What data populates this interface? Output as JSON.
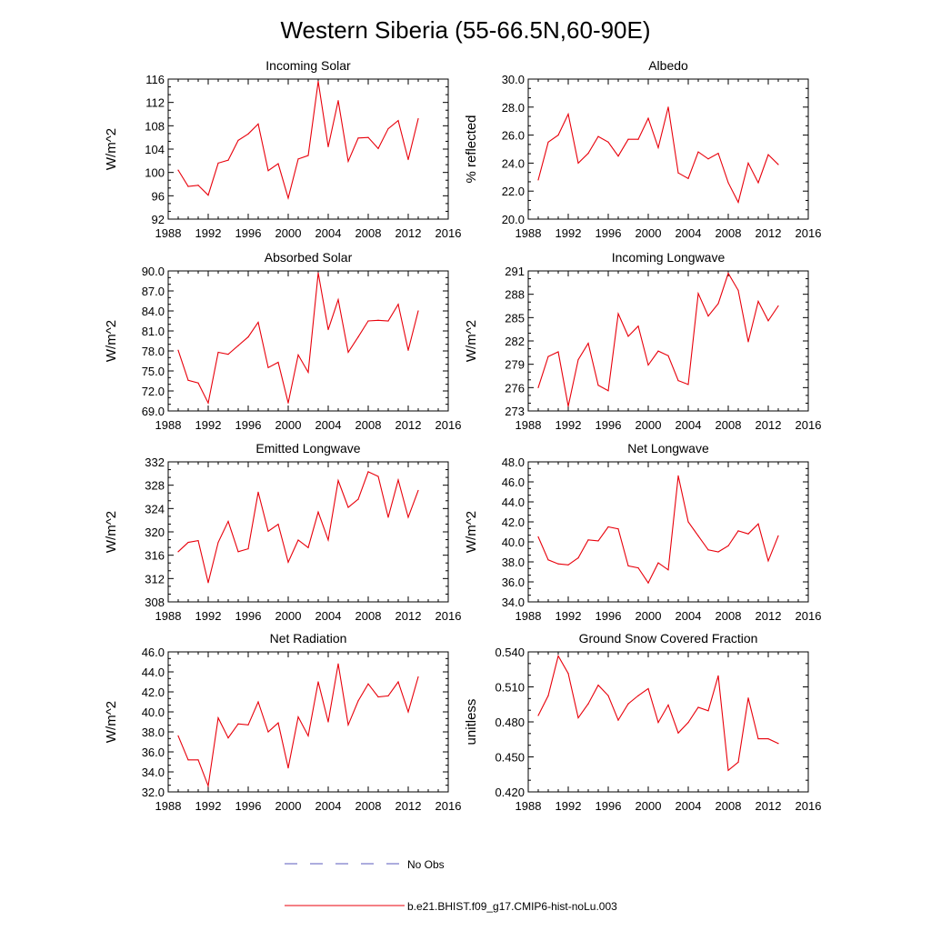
{
  "figure": {
    "title": "Western Siberia (55-66.5N,60-90E)",
    "line_color": "#e8000b",
    "obs_color": "#5b5bbd"
  },
  "legend": {
    "obs_label": "No Obs",
    "model_label": "b.e21.BHIST.f09_g17.CMIP6-hist-noLu.003"
  },
  "chart_data": [
    {
      "type": "line",
      "title": "Incoming Solar",
      "ylabel": "W/m^2",
      "xlim": [
        1988,
        2016
      ],
      "ylim": [
        92,
        116
      ],
      "xticks": [
        1988,
        1992,
        1996,
        2000,
        2004,
        2008,
        2012,
        2016
      ],
      "yticks": [
        92,
        96,
        100,
        104,
        108,
        112,
        116
      ],
      "ytick_labels": [
        "92",
        "96",
        "100",
        "104",
        "108",
        "112",
        "116"
      ],
      "x": [
        1989,
        1990,
        1991,
        1992,
        1993,
        1994,
        1995,
        1996,
        1997,
        1998,
        1999,
        2000,
        2001,
        2002,
        2003,
        2004,
        2005,
        2006,
        2007,
        2008,
        2009,
        2010,
        2011,
        2012,
        2013
      ],
      "series": [
        {
          "values": [
            100.4,
            97.6,
            97.8,
            96.1,
            101.6,
            102.1,
            105.5,
            106.6,
            108.3,
            100.3,
            101.5,
            95.6,
            102.3,
            102.9,
            115.6,
            104.4,
            112.3,
            101.9,
            105.9,
            106.0,
            104.1,
            107.5,
            108.9,
            102.2,
            109.2
          ]
        }
      ]
    },
    {
      "type": "line",
      "title": "Albedo",
      "ylabel": "% reflected",
      "xlim": [
        1988,
        2016
      ],
      "ylim": [
        20,
        30
      ],
      "xticks": [
        1988,
        1992,
        1996,
        2000,
        2004,
        2008,
        2012,
        2016
      ],
      "yticks": [
        20,
        22,
        24,
        26,
        28,
        30
      ],
      "ytick_labels": [
        "20.0",
        "22.0",
        "24.0",
        "26.0",
        "28.0",
        "30.0"
      ],
      "x": [
        1989,
        1990,
        1991,
        1992,
        1993,
        1994,
        1995,
        1996,
        1997,
        1998,
        1999,
        2000,
        2001,
        2002,
        2003,
        2004,
        2005,
        2006,
        2007,
        2008,
        2009,
        2010,
        2011,
        2012,
        2013
      ],
      "series": [
        {
          "values": [
            22.8,
            25.5,
            26.0,
            27.5,
            24.0,
            24.7,
            25.9,
            25.5,
            24.5,
            25.7,
            25.7,
            27.2,
            25.1,
            28.0,
            23.3,
            22.9,
            24.8,
            24.3,
            24.7,
            22.6,
            21.2,
            24.0,
            22.6,
            24.6,
            23.9
          ]
        }
      ]
    },
    {
      "type": "line",
      "title": "Absorbed Solar",
      "ylabel": "W/m^2",
      "xlim": [
        1988,
        2016
      ],
      "ylim": [
        69,
        90
      ],
      "xticks": [
        1988,
        1992,
        1996,
        2000,
        2004,
        2008,
        2012,
        2016
      ],
      "yticks": [
        69,
        72,
        75,
        78,
        81,
        84,
        87,
        90
      ],
      "ytick_labels": [
        "69.0",
        "72.0",
        "75.0",
        "78.0",
        "81.0",
        "84.0",
        "87.0",
        "90.0"
      ],
      "x": [
        1989,
        1990,
        1991,
        1992,
        1993,
        1994,
        1995,
        1996,
        1997,
        1998,
        1999,
        2000,
        2001,
        2002,
        2003,
        2004,
        2005,
        2006,
        2007,
        2008,
        2009,
        2010,
        2011,
        2012,
        2013
      ],
      "series": [
        {
          "values": [
            78.1,
            73.6,
            73.2,
            70.2,
            77.8,
            77.5,
            78.8,
            80.1,
            82.3,
            75.5,
            76.3,
            70.2,
            77.4,
            74.8,
            89.7,
            81.2,
            85.7,
            77.8,
            80.1,
            82.5,
            82.6,
            82.5,
            85.0,
            78.1,
            84.0
          ]
        }
      ]
    },
    {
      "type": "line",
      "title": "Incoming Longwave",
      "ylabel": "W/m^2",
      "xlim": [
        1988,
        2016
      ],
      "ylim": [
        273,
        291
      ],
      "xticks": [
        1988,
        1992,
        1996,
        2000,
        2004,
        2008,
        2012,
        2016
      ],
      "yticks": [
        273,
        276,
        279,
        282,
        285,
        288,
        291
      ],
      "ytick_labels": [
        "273",
        "276",
        "279",
        "282",
        "285",
        "288",
        "291"
      ],
      "x": [
        1989,
        1990,
        1991,
        1992,
        1993,
        1994,
        1995,
        1996,
        1997,
        1998,
        1999,
        2000,
        2001,
        2002,
        2003,
        2004,
        2005,
        2006,
        2007,
        2008,
        2009,
        2010,
        2011,
        2012,
        2013
      ],
      "series": [
        {
          "values": [
            276.0,
            280.0,
            280.6,
            273.6,
            279.6,
            281.7,
            276.3,
            275.6,
            285.5,
            282.6,
            283.9,
            278.9,
            280.7,
            280.1,
            276.9,
            276.4,
            288.1,
            285.2,
            286.8,
            290.7,
            288.5,
            281.9,
            287.1,
            284.6,
            286.5
          ]
        }
      ]
    },
    {
      "type": "line",
      "title": "Emitted Longwave",
      "ylabel": "W/m^2",
      "xlim": [
        1988,
        2016
      ],
      "ylim": [
        308,
        332
      ],
      "xticks": [
        1988,
        1992,
        1996,
        2000,
        2004,
        2008,
        2012,
        2016
      ],
      "yticks": [
        308,
        312,
        316,
        320,
        324,
        328,
        332
      ],
      "ytick_labels": [
        "308",
        "312",
        "316",
        "320",
        "324",
        "328",
        "332"
      ],
      "x": [
        1989,
        1990,
        1991,
        1992,
        1993,
        1994,
        1995,
        1996,
        1997,
        1998,
        1999,
        2000,
        2001,
        2002,
        2003,
        2004,
        2005,
        2006,
        2007,
        2008,
        2009,
        2010,
        2011,
        2012,
        2013
      ],
      "series": [
        {
          "values": [
            316.6,
            318.2,
            318.5,
            311.3,
            318.2,
            321.8,
            316.6,
            317.1,
            326.8,
            320.1,
            321.3,
            314.8,
            318.6,
            317.3,
            323.4,
            318.6,
            328.8,
            324.2,
            325.6,
            330.3,
            329.5,
            322.5,
            328.9,
            322.5,
            327.1
          ]
        }
      ]
    },
    {
      "type": "line",
      "title": "Net Longwave",
      "ylabel": "W/m^2",
      "xlim": [
        1988,
        2016
      ],
      "ylim": [
        34,
        48
      ],
      "xticks": [
        1988,
        1992,
        1996,
        2000,
        2004,
        2008,
        2012,
        2016
      ],
      "yticks": [
        34,
        36,
        38,
        40,
        42,
        44,
        46,
        48
      ],
      "ytick_labels": [
        "34.0",
        "36.0",
        "38.0",
        "40.0",
        "42.0",
        "44.0",
        "46.0",
        "48.0"
      ],
      "x": [
        1989,
        1990,
        1991,
        1992,
        1993,
        1994,
        1995,
        1996,
        1997,
        1998,
        1999,
        2000,
        2001,
        2002,
        2003,
        2004,
        2005,
        2006,
        2007,
        2008,
        2009,
        2010,
        2011,
        2012,
        2013
      ],
      "series": [
        {
          "values": [
            40.5,
            38.2,
            37.8,
            37.7,
            38.4,
            40.2,
            40.1,
            41.5,
            41.3,
            37.6,
            37.4,
            35.9,
            37.9,
            37.2,
            46.6,
            42.0,
            40.6,
            39.2,
            39.0,
            39.6,
            41.1,
            40.8,
            41.8,
            38.1,
            40.6
          ]
        }
      ]
    },
    {
      "type": "line",
      "title": "Net Radiation",
      "ylabel": "W/m^2",
      "xlim": [
        1988,
        2016
      ],
      "ylim": [
        32,
        46
      ],
      "xticks": [
        1988,
        1992,
        1996,
        2000,
        2004,
        2008,
        2012,
        2016
      ],
      "yticks": [
        32,
        34,
        36,
        38,
        40,
        42,
        44,
        46
      ],
      "ytick_labels": [
        "32.0",
        "34.0",
        "36.0",
        "38.0",
        "40.0",
        "42.0",
        "44.0",
        "46.0"
      ],
      "x": [
        1989,
        1990,
        1991,
        1992,
        1993,
        1994,
        1995,
        1996,
        1997,
        1998,
        1999,
        2000,
        2001,
        2002,
        2003,
        2004,
        2005,
        2006,
        2007,
        2008,
        2009,
        2010,
        2011,
        2012,
        2013
      ],
      "series": [
        {
          "values": [
            37.6,
            35.2,
            35.2,
            32.6,
            39.4,
            37.4,
            38.8,
            38.7,
            41.0,
            38.0,
            38.9,
            34.4,
            39.5,
            37.6,
            43.0,
            39.0,
            44.8,
            38.7,
            41.1,
            42.8,
            41.5,
            41.6,
            43.0,
            40.0,
            43.5
          ]
        }
      ]
    },
    {
      "type": "line",
      "title": "Ground Snow Covered Fraction",
      "ylabel": "unitless",
      "xlim": [
        1988,
        2016
      ],
      "ylim": [
        0.42,
        0.54
      ],
      "xticks": [
        1988,
        1992,
        1996,
        2000,
        2004,
        2008,
        2012,
        2016
      ],
      "yticks": [
        0.42,
        0.45,
        0.48,
        0.51,
        0.54
      ],
      "ytick_labels": [
        "0.420",
        "0.450",
        "0.480",
        "0.510",
        "0.540"
      ],
      "x": [
        1989,
        1990,
        1991,
        1992,
        1993,
        1994,
        1995,
        1996,
        1997,
        1998,
        1999,
        2000,
        2001,
        2002,
        2003,
        2004,
        2005,
        2006,
        2007,
        2008,
        2009,
        2010,
        2011,
        2012,
        2013
      ],
      "series": [
        {
          "values": [
            0.4855,
            0.5025,
            0.5365,
            0.5215,
            0.4835,
            0.4955,
            0.5115,
            0.5025,
            0.4815,
            0.4955,
            0.5025,
            0.5085,
            0.4795,
            0.4945,
            0.4705,
            0.4795,
            0.4925,
            0.4895,
            0.5195,
            0.4385,
            0.4455,
            0.5005,
            0.4655,
            0.4655,
            0.4615
          ]
        }
      ]
    }
  ]
}
